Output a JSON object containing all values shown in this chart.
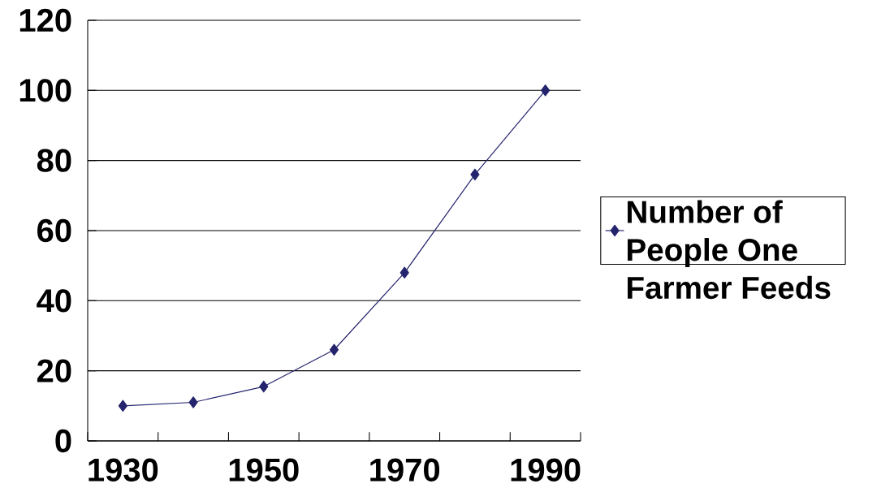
{
  "chart_data": {
    "type": "line",
    "categories": [
      "1930",
      null,
      "1950",
      null,
      "1970",
      null,
      "1990"
    ],
    "series": [
      {
        "name": "Number of People One Farmer Feeds",
        "color": "#24246e",
        "values": [
          10,
          11,
          15.5,
          26,
          48,
          76,
          100
        ]
      }
    ],
    "ylim": [
      0,
      120
    ],
    "yticks": [
      0,
      20,
      40,
      60,
      80,
      100,
      120
    ],
    "grid": "y",
    "legend": "right",
    "marker": "diamond",
    "line_style": "solid"
  }
}
